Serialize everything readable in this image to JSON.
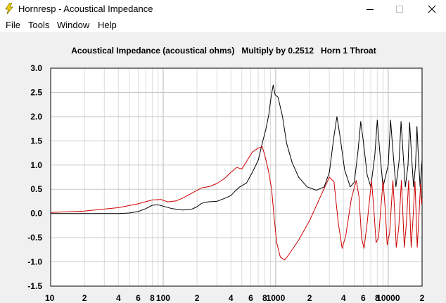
{
  "window": {
    "title": "Hornresp - Acoustical Impedance",
    "icon": "lightning-bolt-icon",
    "controls": [
      "minimize-icon",
      "maximize-icon",
      "close-icon"
    ]
  },
  "menu": {
    "items": [
      "File",
      "Tools",
      "Window",
      "Help"
    ]
  },
  "colors": {
    "series_black": "#000000",
    "series_red": "#cc0000",
    "plot_bg": "#ffffff",
    "client_bg": "#f0f0f0",
    "grid": "#c8c8c8"
  },
  "chart_data": {
    "type": "line",
    "title": "Acoustical Impedance (acoustical ohms)   Multiply by 0.2512   Horn 1 Throat",
    "xscale": "log",
    "xlim": [
      10,
      20000
    ],
    "ylim": [
      -1.5,
      3.0
    ],
    "grid": true,
    "x_tick_labels": [
      {
        "x": 10,
        "label": "10"
      },
      {
        "x": 20,
        "label": "2"
      },
      {
        "x": 40,
        "label": "4"
      },
      {
        "x": 60,
        "label": "6"
      },
      {
        "x": 80,
        "label": "8"
      },
      {
        "x": 100,
        "label": "100"
      },
      {
        "x": 200,
        "label": "2"
      },
      {
        "x": 400,
        "label": "4"
      },
      {
        "x": 600,
        "label": "6"
      },
      {
        "x": 800,
        "label": "8"
      },
      {
        "x": 1000,
        "label": "1000"
      },
      {
        "x": 2000,
        "label": "2"
      },
      {
        "x": 4000,
        "label": "4"
      },
      {
        "x": 6000,
        "label": "6"
      },
      {
        "x": 8000,
        "label": "8"
      },
      {
        "x": 10000,
        "label": "10000"
      },
      {
        "x": 20000,
        "label": "2"
      }
    ],
    "y_tick_labels": [
      "3.0",
      "2.5",
      "2.0",
      "1.5",
      "1.0",
      "0.5",
      "0.0",
      "-0.5",
      "-1.0",
      "-1.5"
    ],
    "y_ticks": [
      3.0,
      2.5,
      2.0,
      1.5,
      1.0,
      0.5,
      0.0,
      -0.5,
      -1.0,
      -1.5
    ],
    "series": [
      {
        "color": "#000000",
        "points": [
          [
            10,
            0.0
          ],
          [
            20,
            0.0
          ],
          [
            40,
            0.0
          ],
          [
            50,
            0.01
          ],
          [
            60,
            0.04
          ],
          [
            70,
            0.1
          ],
          [
            80,
            0.17
          ],
          [
            90,
            0.18
          ],
          [
            100,
            0.15
          ],
          [
            120,
            0.1
          ],
          [
            150,
            0.07
          ],
          [
            180,
            0.09
          ],
          [
            200,
            0.14
          ],
          [
            220,
            0.21
          ],
          [
            250,
            0.24
          ],
          [
            300,
            0.25
          ],
          [
            350,
            0.31
          ],
          [
            400,
            0.37
          ],
          [
            430,
            0.45
          ],
          [
            480,
            0.55
          ],
          [
            550,
            0.63
          ],
          [
            620,
            0.85
          ],
          [
            700,
            1.1
          ],
          [
            760,
            1.45
          ],
          [
            820,
            1.75
          ],
          [
            870,
            2.05
          ],
          [
            910,
            2.4
          ],
          [
            950,
            2.65
          ],
          [
            990,
            2.45
          ],
          [
            1050,
            2.4
          ],
          [
            1150,
            2.0
          ],
          [
            1250,
            1.45
          ],
          [
            1400,
            1.05
          ],
          [
            1600,
            0.75
          ],
          [
            1900,
            0.55
          ],
          [
            2300,
            0.48
          ],
          [
            2700,
            0.55
          ],
          [
            3000,
            0.85
          ],
          [
            3300,
            1.6
          ],
          [
            3500,
            2.0
          ],
          [
            3700,
            1.65
          ],
          [
            4100,
            0.9
          ],
          [
            4600,
            0.55
          ],
          [
            5000,
            0.65
          ],
          [
            5400,
            1.3
          ],
          [
            5700,
            1.9
          ],
          [
            6000,
            1.5
          ],
          [
            6500,
            0.8
          ],
          [
            7000,
            0.55
          ],
          [
            7600,
            1.2
          ],
          [
            8000,
            1.93
          ],
          [
            8400,
            1.3
          ],
          [
            9000,
            0.55
          ],
          [
            10000,
            1.0
          ],
          [
            10500,
            1.93
          ],
          [
            11000,
            1.3
          ],
          [
            11700,
            0.55
          ],
          [
            12500,
            1.1
          ],
          [
            13000,
            1.9
          ],
          [
            13600,
            1.2
          ],
          [
            14200,
            0.55
          ],
          [
            15000,
            1.0
          ],
          [
            15500,
            1.88
          ],
          [
            16200,
            1.1
          ],
          [
            16800,
            0.55
          ],
          [
            17500,
            1.0
          ],
          [
            18000,
            1.8
          ],
          [
            18600,
            1.1
          ],
          [
            19200,
            0.55
          ],
          [
            19600,
            0.85
          ],
          [
            20000,
            1.1
          ]
        ]
      },
      {
        "color": "#cc0000",
        "points": [
          [
            10,
            0.02
          ],
          [
            20,
            0.05
          ],
          [
            40,
            0.12
          ],
          [
            60,
            0.2
          ],
          [
            80,
            0.28
          ],
          [
            95,
            0.29
          ],
          [
            110,
            0.24
          ],
          [
            130,
            0.26
          ],
          [
            150,
            0.32
          ],
          [
            180,
            0.42
          ],
          [
            220,
            0.53
          ],
          [
            260,
            0.56
          ],
          [
            300,
            0.62
          ],
          [
            350,
            0.72
          ],
          [
            400,
            0.85
          ],
          [
            450,
            0.95
          ],
          [
            500,
            0.92
          ],
          [
            560,
            1.1
          ],
          [
            620,
            1.27
          ],
          [
            700,
            1.35
          ],
          [
            760,
            1.38
          ],
          [
            800,
            1.2
          ],
          [
            860,
            0.9
          ],
          [
            920,
            0.5
          ],
          [
            970,
            -0.1
          ],
          [
            1020,
            -0.6
          ],
          [
            1100,
            -0.9
          ],
          [
            1200,
            -0.96
          ],
          [
            1300,
            -0.86
          ],
          [
            1600,
            -0.55
          ],
          [
            2000,
            -0.15
          ],
          [
            2500,
            0.35
          ],
          [
            3000,
            0.75
          ],
          [
            3300,
            0.65
          ],
          [
            3600,
            -0.2
          ],
          [
            3900,
            -0.72
          ],
          [
            4200,
            -0.45
          ],
          [
            4700,
            0.3
          ],
          [
            5200,
            0.68
          ],
          [
            5500,
            0.35
          ],
          [
            5800,
            -0.5
          ],
          [
            6100,
            -0.72
          ],
          [
            6500,
            -0.2
          ],
          [
            7100,
            0.68
          ],
          [
            7400,
            0.2
          ],
          [
            7800,
            -0.6
          ],
          [
            8200,
            -0.5
          ],
          [
            9000,
            0.68
          ],
          [
            9400,
            0.1
          ],
          [
            9800,
            -0.65
          ],
          [
            10300,
            -0.4
          ],
          [
            11000,
            0.68
          ],
          [
            11400,
            0.05
          ],
          [
            11800,
            -0.7
          ],
          [
            12400,
            -0.3
          ],
          [
            13100,
            0.68
          ],
          [
            13500,
            0.0
          ],
          [
            13900,
            -0.7
          ],
          [
            14500,
            -0.2
          ],
          [
            15200,
            0.68
          ],
          [
            15600,
            0.0
          ],
          [
            16000,
            -0.7
          ],
          [
            16600,
            -0.1
          ],
          [
            17300,
            0.66
          ],
          [
            17700,
            0.0
          ],
          [
            18100,
            -0.7
          ],
          [
            18800,
            0.0
          ],
          [
            19400,
            0.62
          ],
          [
            19800,
            0.2
          ],
          [
            20000,
            0.3
          ]
        ]
      }
    ]
  }
}
